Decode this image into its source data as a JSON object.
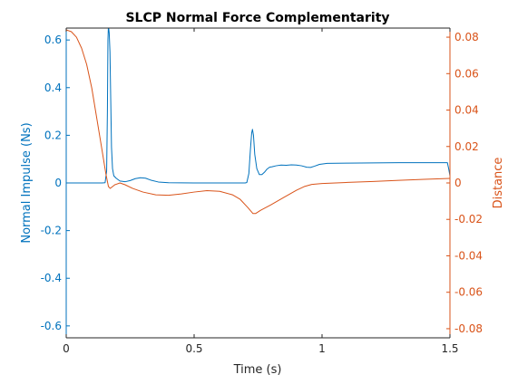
{
  "chart_data": {
    "type": "line",
    "title": "SLCP Normal Force Complementarity",
    "xlabel": "Time (s)",
    "xlim": [
      0,
      1.5
    ],
    "xticks": [
      0,
      0.5,
      1,
      1.5
    ],
    "xtick_labels": [
      "0",
      "0.5",
      "1",
      "1.5"
    ],
    "y_left": {
      "label": "Normal Impulse (Ns)",
      "color": "#0072BD",
      "lim": [
        -0.65,
        0.65
      ],
      "ticks": [
        -0.6,
        -0.4,
        -0.2,
        0,
        0.2,
        0.4,
        0.6
      ],
      "tick_labels": [
        "-0.6",
        "-0.4",
        "-0.2",
        "0",
        "0.2",
        "0.4",
        "0.6"
      ]
    },
    "y_right": {
      "label": "Distance",
      "color": "#D95319",
      "lim": [
        -0.085,
        0.085
      ],
      "ticks": [
        -0.08,
        -0.06,
        -0.04,
        -0.02,
        0,
        0.02,
        0.04,
        0.06,
        0.08
      ],
      "tick_labels": [
        "-0.08",
        "-0.06",
        "-0.04",
        "-0.02",
        "0",
        "0.02",
        "0.04",
        "0.06",
        "0.08"
      ]
    },
    "grid": false,
    "legend": "none",
    "series": [
      {
        "axis": "left",
        "color": "#0072BD",
        "points": [
          [
            0,
            0
          ],
          [
            0.14,
            0
          ],
          [
            0.152,
            0.001
          ],
          [
            0.158,
            0.05
          ],
          [
            0.161,
            0.3
          ],
          [
            0.163,
            0.6
          ],
          [
            0.165,
            0.66
          ],
          [
            0.168,
            0.63
          ],
          [
            0.171,
            0.55
          ],
          [
            0.174,
            0.35
          ],
          [
            0.177,
            0.15
          ],
          [
            0.181,
            0.06
          ],
          [
            0.186,
            0.03
          ],
          [
            0.195,
            0.02
          ],
          [
            0.21,
            0.008
          ],
          [
            0.23,
            0.005
          ],
          [
            0.25,
            0.01
          ],
          [
            0.27,
            0.018
          ],
          [
            0.29,
            0.022
          ],
          [
            0.31,
            0.02
          ],
          [
            0.33,
            0.012
          ],
          [
            0.36,
            0.004
          ],
          [
            0.4,
            0.001
          ],
          [
            0.5,
            0
          ],
          [
            0.6,
            0
          ],
          [
            0.7,
            0
          ],
          [
            0.706,
            0.002
          ],
          [
            0.714,
            0.04
          ],
          [
            0.72,
            0.14
          ],
          [
            0.725,
            0.21
          ],
          [
            0.728,
            0.225
          ],
          [
            0.732,
            0.2
          ],
          [
            0.737,
            0.12
          ],
          [
            0.745,
            0.06
          ],
          [
            0.755,
            0.035
          ],
          [
            0.765,
            0.035
          ],
          [
            0.775,
            0.045
          ],
          [
            0.785,
            0.058
          ],
          [
            0.795,
            0.066
          ],
          [
            0.805,
            0.068
          ],
          [
            0.82,
            0.072
          ],
          [
            0.84,
            0.075
          ],
          [
            0.86,
            0.074
          ],
          [
            0.88,
            0.076
          ],
          [
            0.9,
            0.075
          ],
          [
            0.92,
            0.072
          ],
          [
            0.94,
            0.066
          ],
          [
            0.955,
            0.065
          ],
          [
            0.97,
            0.07
          ],
          [
            0.99,
            0.078
          ],
          [
            1.02,
            0.082
          ],
          [
            1.1,
            0.083
          ],
          [
            1.2,
            0.084
          ],
          [
            1.3,
            0.085
          ],
          [
            1.4,
            0.085
          ],
          [
            1.49,
            0.085
          ],
          [
            1.495,
            0.06
          ],
          [
            1.5,
            0.03
          ]
        ]
      },
      {
        "axis": "right",
        "color": "#D95319",
        "points": [
          [
            0,
            0.084
          ],
          [
            0.02,
            0.083
          ],
          [
            0.04,
            0.08
          ],
          [
            0.06,
            0.074
          ],
          [
            0.08,
            0.065
          ],
          [
            0.1,
            0.052
          ],
          [
            0.12,
            0.035
          ],
          [
            0.14,
            0.018
          ],
          [
            0.155,
            0.005
          ],
          [
            0.165,
            -0.002
          ],
          [
            0.172,
            -0.003
          ],
          [
            0.19,
            -0.001
          ],
          [
            0.21,
            0
          ],
          [
            0.23,
            -0.001
          ],
          [
            0.26,
            -0.003
          ],
          [
            0.3,
            -0.005
          ],
          [
            0.35,
            -0.0065
          ],
          [
            0.4,
            -0.0068
          ],
          [
            0.45,
            -0.006
          ],
          [
            0.5,
            -0.005
          ],
          [
            0.55,
            -0.0042
          ],
          [
            0.6,
            -0.0046
          ],
          [
            0.65,
            -0.0065
          ],
          [
            0.68,
            -0.009
          ],
          [
            0.71,
            -0.0135
          ],
          [
            0.73,
            -0.0168
          ],
          [
            0.74,
            -0.0168
          ],
          [
            0.76,
            -0.015
          ],
          [
            0.8,
            -0.012
          ],
          [
            0.85,
            -0.008
          ],
          [
            0.9,
            -0.004
          ],
          [
            0.93,
            -0.002
          ],
          [
            0.96,
            -0.0008
          ],
          [
            1.0,
            -0.0003
          ],
          [
            1.1,
            0.0003
          ],
          [
            1.2,
            0.0008
          ],
          [
            1.3,
            0.0014
          ],
          [
            1.4,
            0.002
          ],
          [
            1.5,
            0.0025
          ]
        ]
      }
    ]
  }
}
